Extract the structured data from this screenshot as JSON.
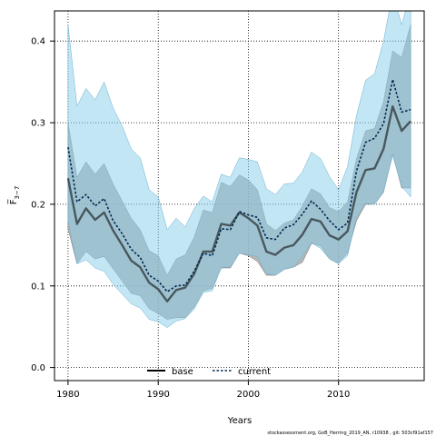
{
  "chart_data": {
    "type": "line",
    "xlabel": "Years",
    "ylabel": "F̅",
    "ylabel_sub": "3−7",
    "xlim": [
      1978.5,
      2019.5
    ],
    "ylim": [
      -0.016,
      0.437
    ],
    "xticks": [
      1980,
      1990,
      2000,
      2010
    ],
    "xtick_labels": [
      "1980",
      "1990",
      "2000",
      "2010"
    ],
    "yticks": [
      0.0,
      0.1,
      0.2,
      0.3,
      0.4
    ],
    "ytick_labels": [
      "0.0",
      "0.1",
      "0.2",
      "0.3",
      "0.4"
    ],
    "grid": true,
    "legend_position": "bottom-center",
    "footer": "stockassessment.org, GoB_Herring_2019_AN, r10938 , git: 503cf91af157",
    "years": [
      1980,
      1981,
      1982,
      1983,
      1984,
      1985,
      1986,
      1987,
      1988,
      1989,
      1990,
      1991,
      1992,
      1993,
      1994,
      1995,
      1996,
      1997,
      1998,
      1999,
      2000,
      2001,
      2002,
      2003,
      2004,
      2005,
      2006,
      2007,
      2008,
      2009,
      2010,
      2011,
      2012,
      2013,
      2014,
      2015,
      2016,
      2017,
      2018
    ],
    "series": [
      {
        "name": "base",
        "color": "#000000",
        "band_color": "#9e9e9e",
        "values": [
          0.232,
          0.176,
          0.195,
          0.181,
          0.19,
          0.168,
          0.15,
          0.131,
          0.123,
          0.104,
          0.096,
          0.081,
          0.095,
          0.098,
          0.115,
          0.142,
          0.142,
          0.176,
          0.174,
          0.19,
          0.183,
          0.174,
          0.142,
          0.138,
          0.147,
          0.15,
          0.163,
          0.182,
          0.179,
          0.162,
          0.157,
          0.167,
          0.215,
          0.242,
          0.244,
          0.268,
          0.32,
          0.29,
          0.302
        ],
        "low": [
          0.17,
          0.127,
          0.142,
          0.133,
          0.136,
          0.121,
          0.106,
          0.091,
          0.088,
          0.072,
          0.066,
          0.059,
          0.061,
          0.061,
          0.074,
          0.094,
          0.097,
          0.122,
          0.122,
          0.14,
          0.137,
          0.13,
          0.113,
          0.113,
          0.121,
          0.123,
          0.129,
          0.152,
          0.149,
          0.133,
          0.128,
          0.14,
          0.18,
          0.2,
          0.2,
          0.215,
          0.262,
          0.22,
          0.22
        ],
        "high": [
          0.3,
          0.233,
          0.252,
          0.237,
          0.25,
          0.225,
          0.204,
          0.183,
          0.169,
          0.143,
          0.137,
          0.113,
          0.133,
          0.138,
          0.16,
          0.193,
          0.19,
          0.227,
          0.222,
          0.236,
          0.23,
          0.218,
          0.176,
          0.168,
          0.177,
          0.181,
          0.198,
          0.219,
          0.213,
          0.196,
          0.191,
          0.203,
          0.256,
          0.29,
          0.293,
          0.326,
          0.388,
          0.38,
          0.42
        ]
      },
      {
        "name": "current",
        "color": "#00264d",
        "band_color": "#87ceeb",
        "values": [
          0.27,
          0.203,
          0.212,
          0.198,
          0.207,
          0.18,
          0.164,
          0.145,
          0.135,
          0.113,
          0.106,
          0.093,
          0.1,
          0.101,
          0.118,
          0.14,
          0.137,
          0.17,
          0.169,
          0.191,
          0.187,
          0.184,
          0.159,
          0.157,
          0.171,
          0.175,
          0.188,
          0.204,
          0.194,
          0.18,
          0.169,
          0.177,
          0.241,
          0.276,
          0.281,
          0.299,
          0.353,
          0.313,
          0.316
        ],
        "low": [
          0.18,
          0.127,
          0.132,
          0.122,
          0.118,
          0.102,
          0.09,
          0.078,
          0.073,
          0.059,
          0.056,
          0.049,
          0.057,
          0.06,
          0.072,
          0.092,
          0.094,
          0.123,
          0.123,
          0.14,
          0.138,
          0.136,
          0.115,
          0.113,
          0.12,
          0.123,
          0.136,
          0.153,
          0.146,
          0.133,
          0.127,
          0.137,
          0.184,
          0.201,
          0.2,
          0.216,
          0.26,
          0.222,
          0.209
        ],
        "high": [
          0.42,
          0.32,
          0.342,
          0.328,
          0.35,
          0.318,
          0.296,
          0.268,
          0.257,
          0.218,
          0.209,
          0.169,
          0.183,
          0.172,
          0.195,
          0.21,
          0.203,
          0.237,
          0.233,
          0.257,
          0.255,
          0.252,
          0.219,
          0.212,
          0.225,
          0.226,
          0.24,
          0.264,
          0.256,
          0.234,
          0.218,
          0.246,
          0.309,
          0.352,
          0.36,
          0.4,
          0.46,
          0.42,
          0.46
        ]
      }
    ]
  }
}
